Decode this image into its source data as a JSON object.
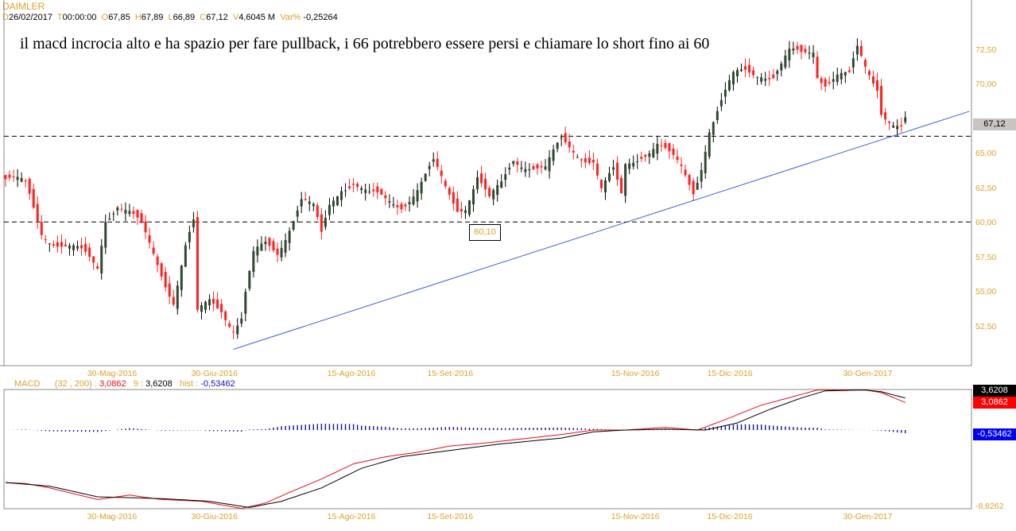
{
  "header": {
    "symbol": "DAIMLER",
    "date_label": "D",
    "date": "26/02/2017",
    "time_label": "T",
    "time": "00:00:00",
    "open_label": "O",
    "open": "67,85",
    "high_label": "H",
    "high": "67,89",
    "low_label": "L",
    "low": "66,89",
    "close_label": "C",
    "close": "67,12",
    "volume_label": "V",
    "volume": "4,6045 M",
    "var_label": "Var%",
    "var": "-0,25264"
  },
  "annotation": "il macd incrocia alto e ha spazio per fare pullback, i 66 potrebbero essere persi e chiamare lo short fino ai 60",
  "level_box": "60,10",
  "macd_header": {
    "name": "MACD",
    "params": "(32 , 200) :",
    "macd": "3,0862",
    "signal_label": "9 :",
    "signal": "3,6208",
    "hist_label": "hist :",
    "hist": "-0,53462"
  },
  "colors": {
    "up": "#2e4a2e",
    "down": "#ff2020",
    "trend": "#3a5fd0",
    "axis_text": "#d9a22a",
    "macd": "#e01010",
    "signal": "#000000",
    "hist": "#1010a0"
  },
  "chart_data": [
    {
      "type": "candlestick",
      "title": "DAIMLER",
      "ylim": [
        50.5,
        74
      ],
      "yticks": [
        "72,50",
        "70,00",
        "65,00",
        "62,50",
        "60,00",
        "57,50",
        "55,00",
        "52,50"
      ],
      "ytick_values": [
        72.5,
        70,
        65,
        62.5,
        60,
        57.5,
        55,
        52.5
      ],
      "last_price": "67,12",
      "xticks": [
        "30-Mag-2016",
        "30-Giu-2016",
        "15-Ago-2016",
        "15-Set-2016",
        "15-Nov-2016",
        "15-Dic-2016",
        "30-Gen-2017"
      ],
      "xtick_bars": [
        27,
        53,
        87,
        112,
        158,
        182,
        216
      ],
      "horizontal_levels": [
        66.3,
        60.1
      ],
      "trendline": {
        "from": [
          57,
          50.9
        ],
        "to": [
          241,
          68.1
        ]
      },
      "close_anchors": [
        [
          0,
          63.2
        ],
        [
          5,
          62.6
        ],
        [
          9,
          59.5
        ],
        [
          15,
          58.3
        ],
        [
          20,
          57.5
        ],
        [
          23,
          56.9
        ],
        [
          25,
          60.6
        ],
        [
          28,
          61.5
        ],
        [
          31,
          60.6
        ],
        [
          34,
          59.5
        ],
        [
          38,
          57.2
        ],
        [
          42,
          54.6
        ],
        [
          45,
          58.3
        ],
        [
          47,
          59.8
        ],
        [
          48,
          53.2
        ],
        [
          51,
          54.3
        ],
        [
          54,
          54
        ],
        [
          57,
          52.6
        ],
        [
          59,
          53.2
        ],
        [
          60,
          54.9
        ],
        [
          62,
          57.5
        ],
        [
          65,
          58.3
        ],
        [
          68,
          58
        ],
        [
          71,
          60
        ],
        [
          74,
          61.8
        ],
        [
          77,
          60.9
        ],
        [
          79,
          58.9
        ],
        [
          81,
          61.2
        ],
        [
          84,
          62.8
        ],
        [
          87,
          63.2
        ],
        [
          91,
          61.9
        ],
        [
          95,
          61.5
        ],
        [
          99,
          61.5
        ],
        [
          103,
          62.6
        ],
        [
          107,
          64.1
        ],
        [
          110,
          62.4
        ],
        [
          113,
          61.2
        ],
        [
          115,
          61.5
        ],
        [
          118,
          63.5
        ],
        [
          121,
          61.5
        ],
        [
          124,
          62.6
        ],
        [
          127,
          64.7
        ],
        [
          131,
          64.4
        ],
        [
          135,
          63.8
        ],
        [
          139,
          65.8
        ],
        [
          143,
          65.2
        ],
        [
          147,
          64.7
        ],
        [
          149,
          62.4
        ],
        [
          152,
          63.5
        ],
        [
          154,
          61.8
        ],
        [
          155,
          64.1
        ],
        [
          159,
          65.2
        ],
        [
          163,
          65.8
        ],
        [
          166,
          64.7
        ],
        [
          169,
          63.8
        ],
        [
          172,
          62.4
        ],
        [
          174,
          64.4
        ],
        [
          176,
          67
        ],
        [
          179,
          68.7
        ],
        [
          182,
          70.4
        ],
        [
          185,
          71
        ],
        [
          189,
          71.1
        ],
        [
          192,
          70.7
        ],
        [
          194,
          71.3
        ],
        [
          196,
          72.1
        ],
        [
          199,
          72.1
        ],
        [
          202,
          72.7
        ],
        [
          203,
          71
        ],
        [
          205,
          70.4
        ],
        [
          208,
          70.7
        ],
        [
          211,
          70.4
        ],
        [
          213,
          72.4
        ],
        [
          215,
          71.3
        ],
        [
          218,
          70.1
        ],
        [
          219,
          68.4
        ],
        [
          222,
          67.2
        ],
        [
          224,
          66.7
        ],
        [
          225,
          67.2
        ]
      ]
    },
    {
      "type": "line",
      "title": "MACD",
      "ylim": [
        -8.8262,
        4.55
      ],
      "ytick_labels": [
        "-8,8262"
      ],
      "value_tags": [
        "3,6208",
        "3,0862",
        "-0,53462"
      ],
      "series": [
        {
          "name": "MACD (32,200)",
          "anchors": [
            [
              0,
              -5.9
            ],
            [
              5,
              -6
            ],
            [
              11,
              -6.5
            ],
            [
              23,
              -7.8
            ],
            [
              31,
              -7.3
            ],
            [
              39,
              -7.8
            ],
            [
              49,
              -8
            ],
            [
              59,
              -8.8
            ],
            [
              65,
              -8.2
            ],
            [
              71,
              -7
            ],
            [
              79,
              -5.5
            ],
            [
              87,
              -3.8
            ],
            [
              95,
              -3
            ],
            [
              103,
              -2.5
            ],
            [
              111,
              -1.8
            ],
            [
              119,
              -1.5
            ],
            [
              129,
              -1
            ],
            [
              139,
              -0.5
            ],
            [
              147,
              0
            ],
            [
              155,
              0
            ],
            [
              165,
              0.3
            ],
            [
              173,
              0
            ],
            [
              179,
              1
            ],
            [
              189,
              2.8
            ],
            [
              199,
              4
            ],
            [
              203,
              4.5
            ],
            [
              215,
              4.5
            ],
            [
              219,
              4.2
            ],
            [
              225,
              3.1
            ]
          ]
        },
        {
          "name": "Signal 9",
          "anchors": [
            [
              0,
              -5.9
            ],
            [
              11,
              -6.3
            ],
            [
              23,
              -7.5
            ],
            [
              39,
              -7.7
            ],
            [
              51,
              -8
            ],
            [
              61,
              -8.7
            ],
            [
              69,
              -8
            ],
            [
              79,
              -6.5
            ],
            [
              89,
              -4.3
            ],
            [
              99,
              -3
            ],
            [
              111,
              -2.3
            ],
            [
              123,
              -1.6
            ],
            [
              139,
              -0.9
            ],
            [
              147,
              -0.2
            ],
            [
              155,
              0
            ],
            [
              165,
              0.1
            ],
            [
              175,
              0
            ],
            [
              183,
              0.8
            ],
            [
              191,
              2.3
            ],
            [
              199,
              3.6
            ],
            [
              205,
              4.4
            ],
            [
              215,
              4.5
            ],
            [
              219,
              4.3
            ],
            [
              225,
              3.6
            ]
          ]
        }
      ]
    }
  ]
}
